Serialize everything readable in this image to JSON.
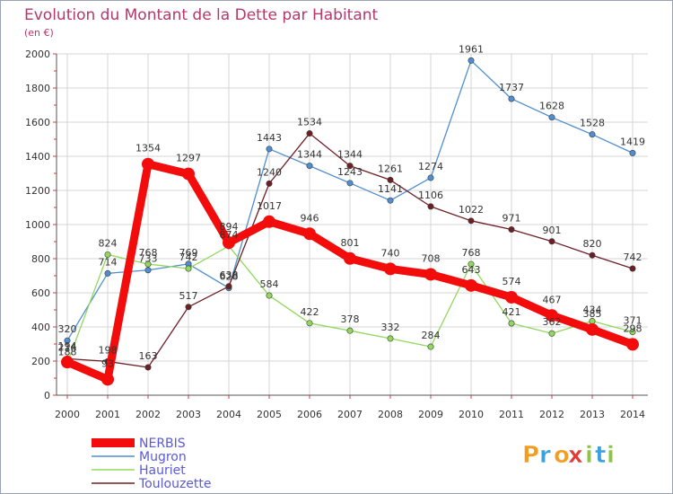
{
  "chart_data": {
    "type": "line",
    "title": "Evolution du Montant de la Dette par Habitant",
    "subtitle": "(en €)",
    "xlabel": "",
    "ylabel": "",
    "ylim": [
      0,
      2000
    ],
    "yticks": [
      0,
      200,
      400,
      600,
      800,
      1000,
      1200,
      1400,
      1600,
      1800,
      2000
    ],
    "x": [
      "2000",
      "2001",
      "2002",
      "2003",
      "2004",
      "2005",
      "2006",
      "2007",
      "2008",
      "2009",
      "2010",
      "2011",
      "2012",
      "2013",
      "2014"
    ],
    "grid": true,
    "legend_position": "bottom-left",
    "series": [
      {
        "name": "Mugron",
        "color": "#4f8ed0",
        "values": [
          320,
          714,
          733,
          769,
          628,
          1443,
          1344,
          1243,
          1141,
          1274,
          1961,
          1737,
          1628,
          1528,
          1419
        ]
      },
      {
        "name": "Hauriet",
        "color": "#92d85e",
        "values": [
          188,
          824,
          768,
          742,
          874,
          584,
          422,
          378,
          332,
          284,
          768,
          421,
          362,
          434,
          371
        ]
      },
      {
        "name": "Toulouzette",
        "color": "#6e1f24",
        "values": [
          214,
          198,
          163,
          517,
          638,
          1240,
          1534,
          1344,
          1261,
          1106,
          1022,
          971,
          901,
          820,
          742
        ]
      },
      {
        "name": "NERBIS",
        "color": "#f20c0c",
        "values": [
          194,
          93,
          1354,
          1297,
          894,
          1017,
          946,
          801,
          740,
          708,
          643,
          574,
          467,
          385,
          298
        ]
      }
    ],
    "legend_order": [
      "NERBIS",
      "Mugron",
      "Hauriet",
      "Toulouzette"
    ]
  },
  "logo": {
    "text": "Proxiti",
    "letters": [
      "P",
      "r",
      "o",
      "x",
      "i",
      "t",
      "i"
    ]
  }
}
